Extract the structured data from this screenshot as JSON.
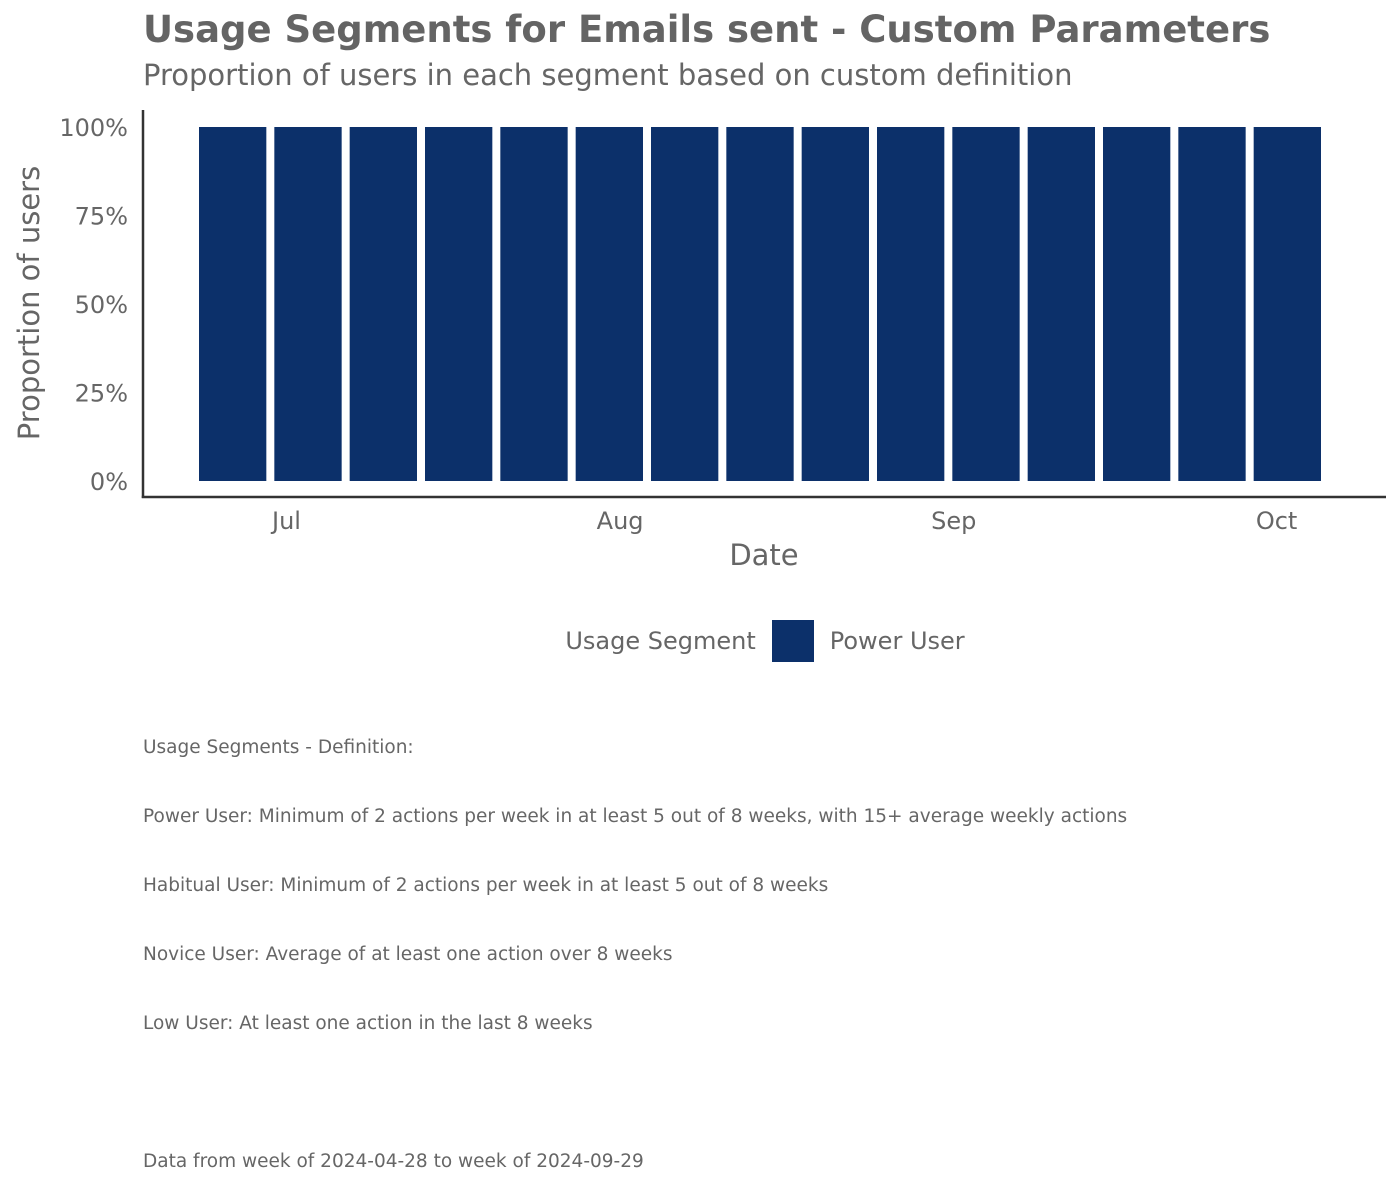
{
  "title": "Usage Segments for Emails sent - Custom Parameters",
  "subtitle": "Proportion of users in each segment based on custom definition",
  "colors": {
    "power_user": "#0c306a",
    "axis": "#333333",
    "text": "#666666"
  },
  "chart_data": {
    "type": "bar",
    "stacked": true,
    "title": "Usage Segments for Emails sent - Custom Parameters",
    "subtitle": "Proportion of users in each segment based on custom definition",
    "xlabel": "Date",
    "ylabel": "Proportion of users",
    "x_ticks": [
      "Jul",
      "Aug",
      "Sep",
      "Oct"
    ],
    "y_ticks": [
      "0%",
      "25%",
      "50%",
      "75%",
      "100%"
    ],
    "ylim": [
      0,
      1
    ],
    "grid": false,
    "legend_position": "bottom",
    "legend_title": "Usage Segment",
    "categories": [
      "2024-06-23",
      "2024-06-30",
      "2024-07-07",
      "2024-07-14",
      "2024-07-21",
      "2024-07-28",
      "2024-08-04",
      "2024-08-11",
      "2024-08-18",
      "2024-08-25",
      "2024-09-01",
      "2024-09-08",
      "2024-09-15",
      "2024-09-22",
      "2024-09-29"
    ],
    "series": [
      {
        "name": "Power User",
        "color": "#0c306a",
        "values": [
          1,
          1,
          1,
          1,
          1,
          1,
          1,
          1,
          1,
          1,
          1,
          1,
          1,
          1,
          1
        ]
      }
    ]
  },
  "caption": {
    "heading": "Usage Segments - Definition:",
    "lines": [
      "Power User: Minimum of 2 actions per week in at least 5 out of 8 weeks, with 15+ average weekly actions",
      "Habitual User: Minimum of 2 actions per week in at least 5 out of 8 weeks",
      "Novice User: Average of at least one action over 8 weeks",
      "Low User: At least one action in the last 8 weeks"
    ],
    "data_range": "Data from week of 2024-04-28 to week of 2024-09-29"
  }
}
